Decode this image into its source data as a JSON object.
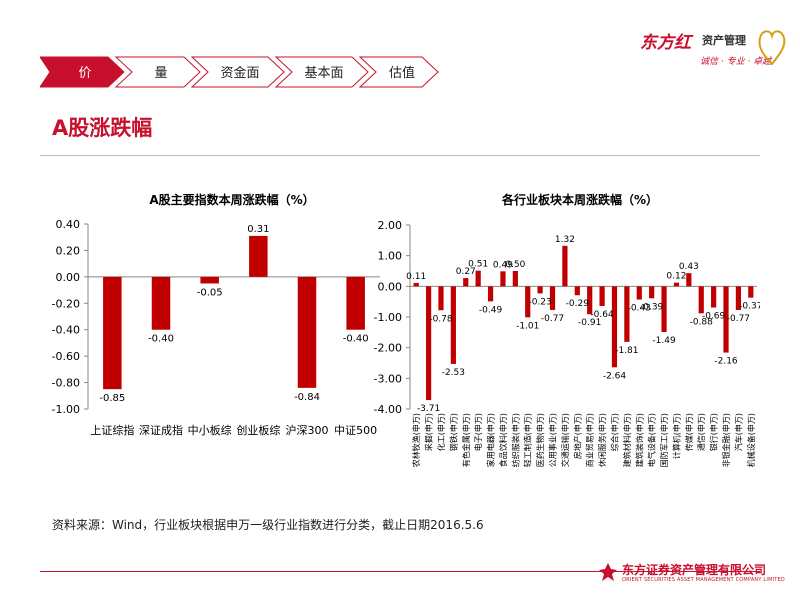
{
  "nav": {
    "tabs": [
      {
        "label": "价",
        "active": true
      },
      {
        "label": "量",
        "active": false
      },
      {
        "label": "资金面",
        "active": false
      },
      {
        "label": "基本面",
        "active": false
      },
      {
        "label": "估值",
        "active": false
      }
    ]
  },
  "logo": {
    "brand": "东方红",
    "sub": "资产管理",
    "tagline": "诚信 · 专业 · 卓越"
  },
  "page": {
    "title": "A股涨跌幅",
    "source": "资料来源：Wind，行业板块根据申万一级行业指数进行分类，截止日期2016.5.6"
  },
  "footer": {
    "name": "东方证券资产管理有限公司",
    "en": "ORIENT SECURITIES ASSET MANAGEMENT COMPANY LIMITED"
  },
  "colors": {
    "accent": "#c8102e",
    "bar": "#c00000"
  },
  "chart_data": [
    {
      "type": "bar",
      "title": "A股主要指数本周涨跌幅（%）",
      "categories": [
        "上证综指",
        "深证成指",
        "中小板综",
        "创业板综",
        "沪深300",
        "中证500"
      ],
      "values": [
        -0.85,
        -0.4,
        -0.05,
        0.31,
        -0.84,
        -0.4
      ],
      "ylim": [
        -1.0,
        0.4
      ],
      "yticks": [
        0.4,
        0.2,
        0.0,
        -0.2,
        -0.4,
        -0.6,
        -0.8,
        -1.0
      ],
      "grid": false,
      "legend": "none"
    },
    {
      "type": "bar",
      "title": "各行业板块本周涨跌幅（%）",
      "categories": [
        "农林牧渔(申万)",
        "采掘(申万)",
        "化工(申万)",
        "钢铁(申万)",
        "有色金属(申万)",
        "电子(申万)",
        "家用电器(申万)",
        "食品饮料(申万)",
        "纺织服装(申万)",
        "轻工制造(申万)",
        "医药生物(申万)",
        "公用事业(申万)",
        "交通运输(申万)",
        "房地产(申万)",
        "商业贸易(申万)",
        "休闲服务(申万)",
        "综合(申万)",
        "建筑材料(申万)",
        "建筑装饰(申万)",
        "电气设备(申万)",
        "国防军工(申万)",
        "计算机(申万)",
        "传媒(申万)",
        "通信(申万)",
        "银行(申万)",
        "非银金融(申万)",
        "汽车(申万)",
        "机械设备(申万)"
      ],
      "values": [
        0.11,
        -3.71,
        -0.78,
        -2.53,
        0.27,
        0.51,
        -0.49,
        0.49,
        0.5,
        -1.01,
        -0.23,
        -0.77,
        1.32,
        -0.29,
        -0.91,
        -0.64,
        -2.64,
        -1.81,
        -0.43,
        -0.39,
        -1.49,
        0.12,
        0.43,
        -0.88,
        -0.69,
        -2.16,
        -0.77,
        -0.37
      ],
      "ylim": [
        -4.0,
        2.0
      ],
      "yticks": [
        2.0,
        1.0,
        0.0,
        -1.0,
        -2.0,
        -3.0,
        -4.0
      ],
      "grid": false,
      "legend": "none"
    }
  ]
}
